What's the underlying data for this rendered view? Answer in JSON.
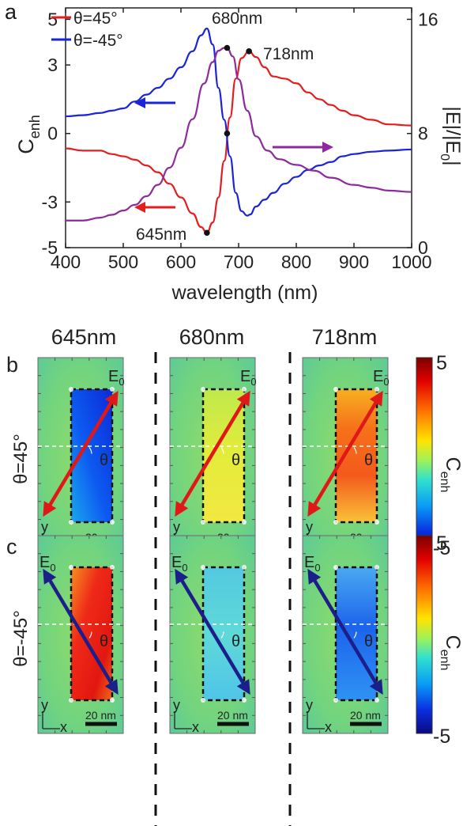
{
  "panel_a": {
    "label": "a",
    "chart_data": {
      "type": "line",
      "xlabel": "wavelength (nm)",
      "xlim": [
        400,
        1000
      ],
      "x_ticks": [
        "400",
        "500",
        "600",
        "700",
        "800",
        "900",
        "1000"
      ],
      "ylabel_left": "C",
      "ylabel_left_sub": "enh",
      "ylim_left": [
        -5,
        5.5
      ],
      "y_ticks_left": [
        "5",
        "3",
        "0",
        "-3",
        "-5"
      ],
      "ylabel_right": "|E|/|E",
      "ylabel_right_sub": "0",
      "ylabel_right_close": "|",
      "ylim_right": [
        0,
        16
      ],
      "y_ticks_right": [
        "16",
        "8",
        "0"
      ],
      "legend_placement": "top-left",
      "grid": false,
      "series": [
        {
          "name": "θ=45°",
          "axis": "left",
          "color": "#e41e1e",
          "x": [
            400,
            430,
            460,
            480,
            500,
            520,
            540,
            560,
            580,
            600,
            620,
            635,
            645,
            655,
            665,
            675,
            685,
            695,
            705,
            718,
            730,
            745,
            760,
            780,
            800,
            820,
            840,
            860,
            880,
            900,
            930,
            960,
            1000
          ],
          "y": [
            -0.65,
            -0.75,
            -0.75,
            -0.9,
            -1.0,
            -1.15,
            -1.4,
            -1.7,
            -2.2,
            -2.8,
            -3.5,
            -4.1,
            -4.35,
            -3.9,
            -2.8,
            -1.2,
            0.7,
            2.4,
            3.3,
            3.6,
            3.35,
            2.9,
            2.5,
            2.4,
            2.2,
            1.8,
            1.5,
            1.25,
            1.0,
            0.8,
            0.6,
            0.4,
            0.35
          ]
        },
        {
          "name": "θ=-45°",
          "axis": "left",
          "color": "#1a24d8",
          "x": [
            400,
            430,
            460,
            480,
            500,
            520,
            540,
            560,
            580,
            600,
            620,
            635,
            645,
            655,
            665,
            675,
            685,
            695,
            705,
            715,
            720,
            730,
            745,
            760,
            780,
            800,
            820,
            840,
            860,
            880,
            900,
            930,
            960,
            1000
          ],
          "y": [
            0.75,
            0.8,
            0.9,
            1.0,
            1.1,
            1.4,
            1.7,
            2.0,
            2.4,
            2.9,
            3.6,
            4.3,
            4.6,
            3.9,
            2.0,
            0.6,
            -1.0,
            -2.6,
            -3.4,
            -3.6,
            -3.55,
            -3.2,
            -2.9,
            -2.6,
            -2.2,
            -1.9,
            -1.6,
            -1.4,
            -1.25,
            -1.0,
            -0.9,
            -0.8,
            -0.75,
            -0.7
          ]
        },
        {
          "name": "|E|/|E0|",
          "axis": "right",
          "color": "#8e2a9e",
          "x": [
            400,
            430,
            460,
            480,
            500,
            520,
            540,
            560,
            580,
            600,
            620,
            640,
            655,
            665,
            675,
            680,
            690,
            700,
            715,
            730,
            750,
            770,
            800,
            830,
            860,
            900,
            930,
            960,
            1000
          ],
          "y": [
            1.9,
            1.9,
            2.1,
            2.3,
            2.6,
            3.0,
            3.6,
            4.4,
            5.6,
            7.0,
            9.0,
            11.5,
            13.0,
            13.8,
            14.0,
            14.0,
            13.4,
            11.8,
            9.6,
            7.8,
            6.8,
            6.2,
            5.8,
            5.4,
            4.9,
            4.4,
            4.2,
            4.0,
            3.9
          ]
        }
      ],
      "markers": [
        {
          "x": 645,
          "y": -4.35,
          "axis": "left",
          "label": "645nm"
        },
        {
          "x": 680,
          "y": 0.0,
          "axis": "left",
          "label": ""
        },
        {
          "x": 680,
          "y": 14.0,
          "axis": "right",
          "label": "680nm"
        },
        {
          "x": 718,
          "y": 3.6,
          "axis": "left",
          "label": "718nm"
        }
      ],
      "arrows": [
        {
          "color": "#1a24d8",
          "direction": "left"
        },
        {
          "color": "#e41e1e",
          "direction": "left"
        },
        {
          "color": "#8e2a9e",
          "direction": "right"
        }
      ]
    }
  },
  "panel_b": {
    "label": "b",
    "row_label": "θ=45°",
    "arrow_color": "#e01818"
  },
  "panel_c": {
    "label": "c",
    "row_label": "θ=-45°",
    "arrow_color": "#1c1f8a"
  },
  "columns": [
    "645nm",
    "680nm",
    "718nm"
  ],
  "field_labels": {
    "e0": "E",
    "e0_sub": "0",
    "theta": "θ",
    "y_axis": "y",
    "x_axis": "x",
    "scale_bar": "20 nm"
  },
  "colorbar": {
    "max_label": "5",
    "min_label": "-5",
    "label": "C",
    "label_sub": "enh"
  },
  "maps": {
    "b": [
      {
        "rod_tone": "blue",
        "level": -4.35
      },
      {
        "rod_tone": "yellow",
        "level": 0.0
      },
      {
        "rod_tone": "red",
        "level": 3.6
      }
    ],
    "c": [
      {
        "rod_tone": "red",
        "level": 4.6
      },
      {
        "rod_tone": "cyan",
        "level": 0.0
      },
      {
        "rod_tone": "blue",
        "level": -3.6
      }
    ]
  }
}
